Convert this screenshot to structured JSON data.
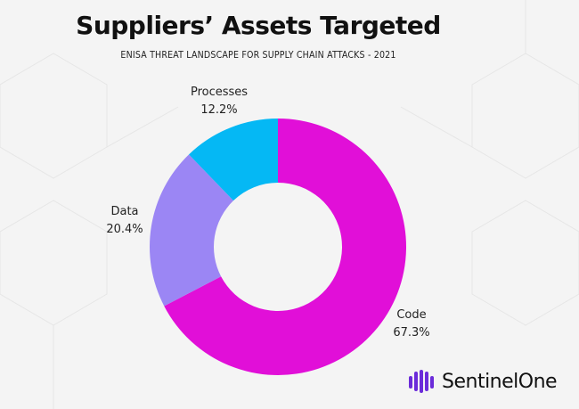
{
  "chart_data": {
    "type": "pie",
    "title": "Suppliers’ Assets Targeted",
    "subtitle": "ENISA THREAT LANDSCAPE FOR SUPPLY CHAIN ATTACKS  - 2021",
    "donut": true,
    "slices": [
      {
        "label": "Code",
        "value": 67.3,
        "display": "67.3%",
        "color": "#e10fd8"
      },
      {
        "label": "Data",
        "value": 20.4,
        "display": "20.4%",
        "color": "#9b86f4"
      },
      {
        "label": "Processes",
        "value": 12.2,
        "display": "12.2%",
        "color": "#05b8f4"
      }
    ],
    "legend": "none",
    "grid": false
  },
  "brand": {
    "name": "SentinelOne",
    "color": "#6b2bd9",
    "icon": "sentinelone-logo-icon"
  }
}
